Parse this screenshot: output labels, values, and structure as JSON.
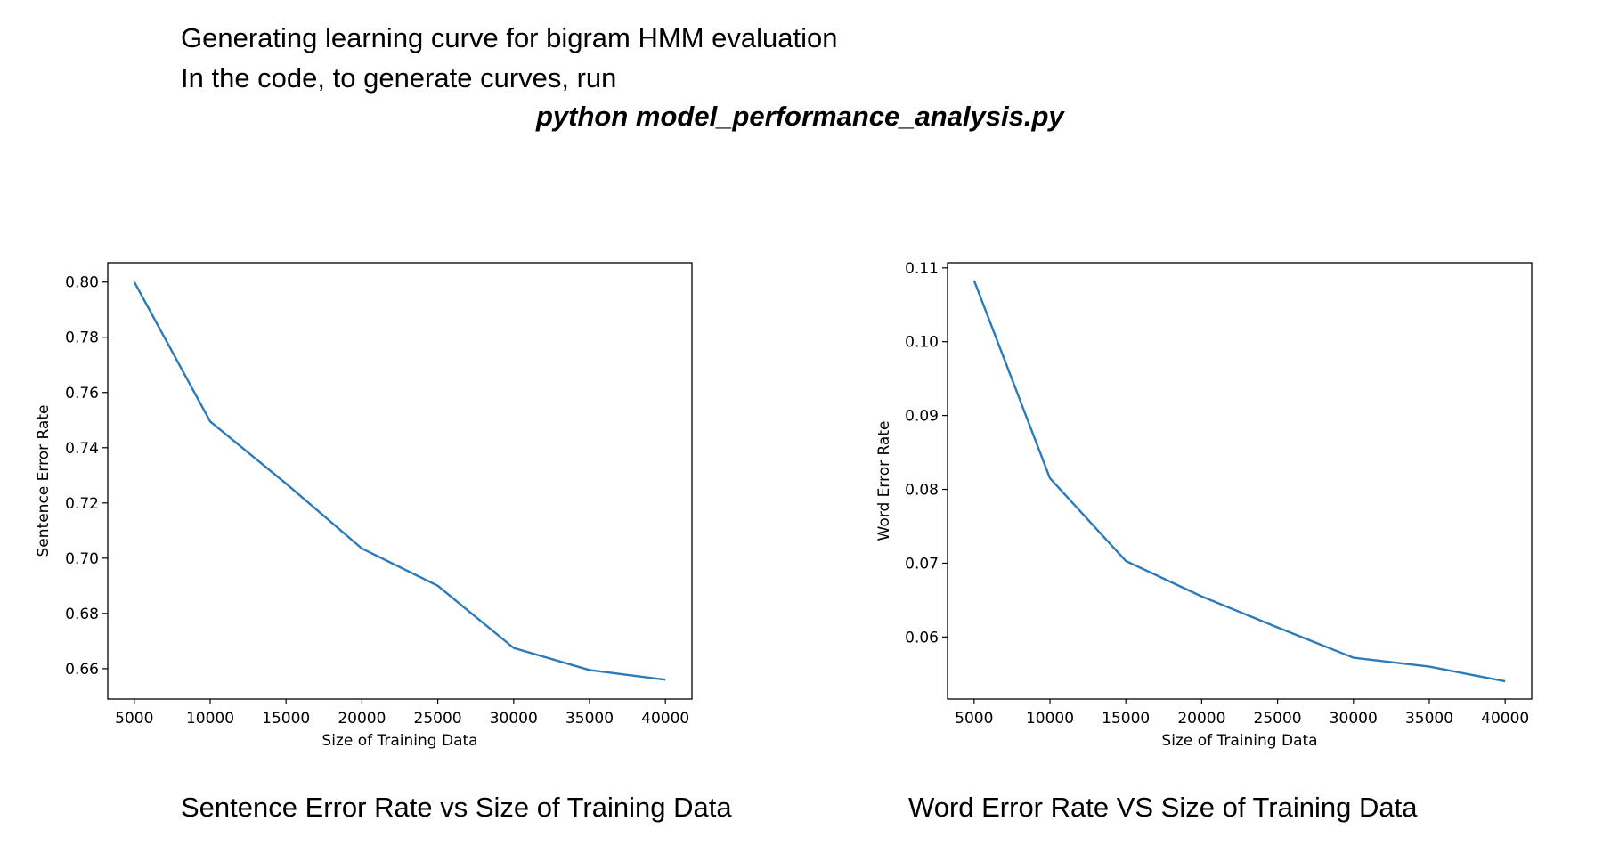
{
  "header": {
    "line1": "Generating learning curve for bigram HMM evaluation",
    "line2": "In the code, to generate curves, run",
    "command": "python model_performance_analysis.py"
  },
  "captions": {
    "left": "Sentence Error Rate vs Size of Training Data",
    "right": "Word Error Rate VS Size of Training Data"
  },
  "colors": {
    "series": "#2b7bba",
    "axes": "#000000"
  },
  "chart_data": [
    {
      "type": "line",
      "title": "",
      "xlabel": "Size of Training Data",
      "ylabel": "Sentence Error Rate",
      "x": [
        5000,
        10000,
        15000,
        20000,
        25000,
        30000,
        35000,
        40000
      ],
      "series": [
        {
          "values": [
            0.8,
            0.7495,
            0.727,
            0.7035,
            0.69,
            0.6675,
            0.6595,
            0.656
          ]
        }
      ],
      "xlim": [
        3250,
        41750
      ],
      "ylim": [
        0.649,
        0.807
      ],
      "xticks": [
        5000,
        10000,
        15000,
        20000,
        25000,
        30000,
        35000,
        40000
      ],
      "yticks": [
        0.66,
        0.68,
        0.7,
        0.72,
        0.74,
        0.76,
        0.78,
        0.8
      ],
      "ytick_labels": [
        "0.66",
        "0.68",
        "0.70",
        "0.72",
        "0.74",
        "0.76",
        "0.78",
        "0.80"
      ],
      "grid": false
    },
    {
      "type": "line",
      "title": "",
      "xlabel": "Size of Training Data",
      "ylabel": "Word Error Rate",
      "x": [
        5000,
        10000,
        15000,
        20000,
        25000,
        30000,
        35000,
        40000
      ],
      "series": [
        {
          "values": [
            0.1083,
            0.0815,
            0.0703,
            0.0655,
            0.0613,
            0.0572,
            0.056,
            0.054
          ]
        }
      ],
      "xlim": [
        3250,
        41750
      ],
      "ylim": [
        0.0516,
        0.1107
      ],
      "xticks": [
        5000,
        10000,
        15000,
        20000,
        25000,
        30000,
        35000,
        40000
      ],
      "yticks": [
        0.06,
        0.07,
        0.08,
        0.09,
        0.1,
        0.11
      ],
      "ytick_labels": [
        "0.06",
        "0.07",
        "0.08",
        "0.09",
        "0.10",
        "0.11"
      ],
      "grid": false
    }
  ]
}
